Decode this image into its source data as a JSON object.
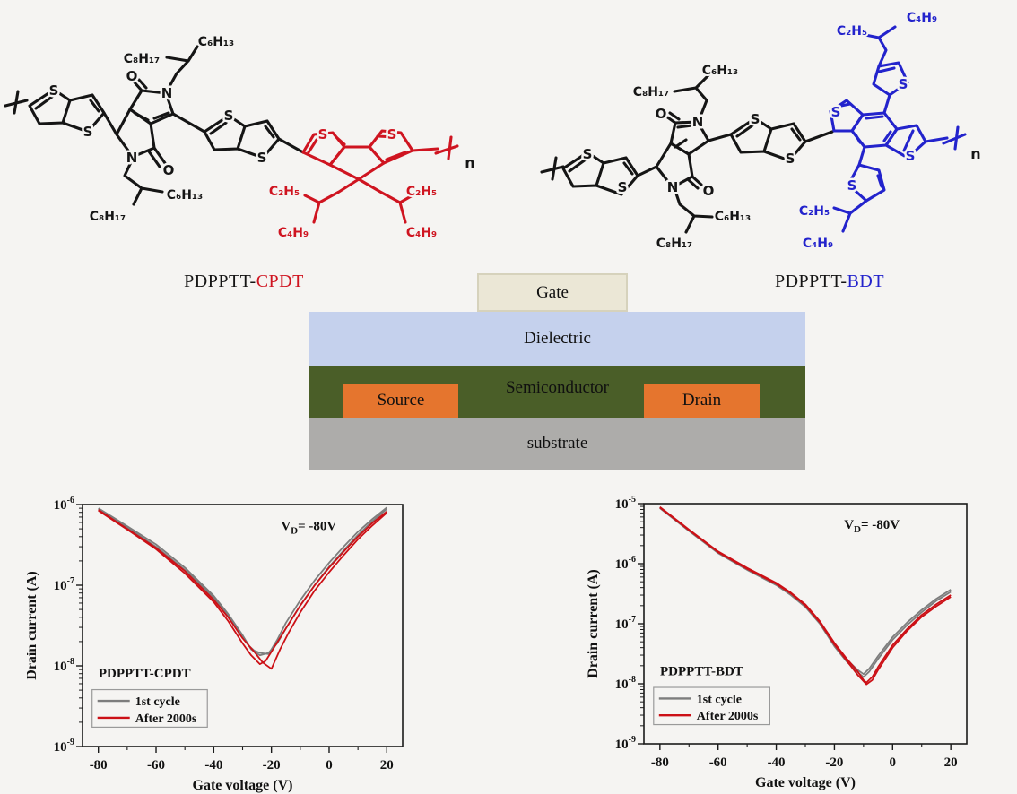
{
  "background": "#f5f4f2",
  "atoms": {
    "S": "S",
    "N": "N",
    "O": "O"
  },
  "formulas": {
    "c8h17": "C₈H₁₇",
    "c6h13": "C₆H₁₃",
    "c2h5": "C₂H₅",
    "c4h9": "C₄H₉"
  },
  "structures": {
    "left": {
      "caption_prefix": "PDPPTT-",
      "caption_suffix": "CPDT",
      "accent_color": "#cf1420",
      "repeat": "n"
    },
    "right": {
      "caption_prefix": "PDPPTT-",
      "caption_suffix": "BDT",
      "accent_color": "#2323cc",
      "repeat": "n"
    }
  },
  "device": {
    "gate": {
      "label": "Gate",
      "bg": "#ebe7d6",
      "border": "#d6d2bc"
    },
    "dielectric": {
      "label": "Dielectric",
      "bg": "#c5d1ed"
    },
    "semiconductor": {
      "label": "Semiconductor",
      "bg": "#4a5e28"
    },
    "source": {
      "label": "Source",
      "bg": "#e5752e"
    },
    "drain": {
      "label": "Drain",
      "bg": "#e5752e"
    },
    "substrate": {
      "label": "substrate",
      "bg": "#adacaa"
    }
  },
  "chart_data": [
    {
      "type": "line",
      "title": "PDPPTT-CPDT",
      "xlabel": "Gate voltage (V)",
      "ylabel": "Drain current (A)",
      "xlim": [
        -85.5,
        25.5
      ],
      "x_ticks": [
        -80,
        -60,
        -40,
        -20,
        0,
        20
      ],
      "ylog_exp_range": [
        -9,
        -6
      ],
      "y_tick_exps": [
        -6,
        -7,
        -8,
        -9
      ],
      "grid": false,
      "legend_position": "lower-left",
      "annotation": {
        "pre": "V",
        "sub": "D",
        "post": "= -80V"
      },
      "legend": [
        {
          "label": "1st cycle",
          "color": "#7d7d7d"
        },
        {
          "label": "After 2000s",
          "color": "#cc1016"
        }
      ],
      "series": [
        {
          "name": "1st cycle",
          "color": "#7d7d7d",
          "branches": [
            [
              [
                -80,
                8.8e-07
              ],
              [
                -70,
                5.2e-07
              ],
              [
                -60,
                3e-07
              ],
              [
                -50,
                1.55e-07
              ],
              [
                -45,
                1.05e-07
              ],
              [
                -40,
                7e-08
              ],
              [
                -35,
                4.2e-08
              ],
              [
                -30,
                2.3e-08
              ],
              [
                -28,
                1.8e-08
              ],
              [
                -26,
                1.55e-08
              ],
              [
                -24,
                1.45e-08
              ],
              [
                -21,
                1.4e-08
              ],
              [
                -18,
                2.1e-08
              ],
              [
                -15,
                3.4e-08
              ],
              [
                -10,
                6.5e-08
              ],
              [
                -5,
                1.15e-07
              ],
              [
                0,
                1.9e-07
              ],
              [
                5,
                3e-07
              ],
              [
                10,
                4.6e-07
              ],
              [
                15,
                6.6e-07
              ],
              [
                20,
                9.2e-07
              ]
            ],
            [
              [
                20,
                8.8e-07
              ],
              [
                15,
                6.2e-07
              ],
              [
                10,
                4.2e-07
              ],
              [
                5,
                2.7e-07
              ],
              [
                0,
                1.7e-07
              ],
              [
                -5,
                1e-07
              ],
              [
                -10,
                5.6e-08
              ],
              [
                -15,
                2.9e-08
              ],
              [
                -18,
                1.9e-08
              ],
              [
                -21,
                1.45e-08
              ],
              [
                -24,
                1.35e-08
              ],
              [
                -27,
                1.6e-08
              ],
              [
                -30,
                2.4e-08
              ],
              [
                -35,
                4.4e-08
              ],
              [
                -40,
                7.4e-08
              ],
              [
                -50,
                1.65e-07
              ],
              [
                -60,
                3.2e-07
              ],
              [
                -70,
                5.4e-07
              ],
              [
                -80,
                9e-07
              ]
            ]
          ]
        },
        {
          "name": "After 2000s",
          "color": "#cc1016",
          "branches": [
            [
              [
                -80,
                8.4e-07
              ],
              [
                -70,
                4.9e-07
              ],
              [
                -60,
                2.8e-07
              ],
              [
                -50,
                1.4e-07
              ],
              [
                -40,
                6.2e-08
              ],
              [
                -35,
                3.6e-08
              ],
              [
                -30,
                1.9e-08
              ],
              [
                -27,
                1.35e-08
              ],
              [
                -24,
                1.05e-08
              ],
              [
                -22,
                1.15e-08
              ],
              [
                -20,
                1.5e-08
              ],
              [
                -15,
                2.9e-08
              ],
              [
                -10,
                5.6e-08
              ],
              [
                -5,
                1e-07
              ],
              [
                0,
                1.65e-07
              ],
              [
                5,
                2.6e-07
              ],
              [
                10,
                4e-07
              ],
              [
                15,
                5.9e-07
              ],
              [
                20,
                8.2e-07
              ]
            ],
            [
              [
                20,
                7.9e-07
              ],
              [
                15,
                5.5e-07
              ],
              [
                10,
                3.7e-07
              ],
              [
                5,
                2.35e-07
              ],
              [
                0,
                1.45e-07
              ],
              [
                -5,
                8.6e-08
              ],
              [
                -10,
                4.6e-08
              ],
              [
                -14,
                2.6e-08
              ],
              [
                -17,
                1.6e-08
              ],
              [
                -20,
                9.2e-09
              ],
              [
                -23,
                1.1e-08
              ],
              [
                -26,
                1.5e-08
              ],
              [
                -30,
                2.2e-08
              ],
              [
                -35,
                4e-08
              ],
              [
                -40,
                6.6e-08
              ],
              [
                -50,
                1.5e-07
              ],
              [
                -60,
                2.9e-07
              ],
              [
                -70,
                5e-07
              ],
              [
                -80,
                8.6e-07
              ]
            ]
          ]
        }
      ]
    },
    {
      "type": "line",
      "title": "PDPPTT-BDT",
      "xlabel": "Gate voltage (V)",
      "ylabel": "Drain current (A)",
      "xlim": [
        -85.5,
        25.5
      ],
      "x_ticks": [
        -80,
        -60,
        -40,
        -20,
        0,
        20
      ],
      "ylog_exp_range": [
        -9,
        -5
      ],
      "y_tick_exps": [
        -5,
        -6,
        -7,
        -8,
        -9
      ],
      "grid": false,
      "legend_position": "lower-left",
      "annotation": {
        "pre": "V",
        "sub": "D",
        "post": "= -80V"
      },
      "legend": [
        {
          "label": "1st cycle",
          "color": "#7d7d7d"
        },
        {
          "label": "After 2000s",
          "color": "#cc1016"
        }
      ],
      "series": [
        {
          "name": "1st cycle",
          "color": "#7d7d7d",
          "branches": [
            [
              [
                -80,
                8.6e-06
              ],
              [
                -70,
                3.6e-06
              ],
              [
                -60,
                1.55e-06
              ],
              [
                -50,
                8.2e-07
              ],
              [
                -40,
                4.6e-07
              ],
              [
                -35,
                3.2e-07
              ],
              [
                -30,
                2e-07
              ],
              [
                -25,
                1.05e-07
              ],
              [
                -20,
                4.6e-08
              ],
              [
                -16,
                2.6e-08
              ],
              [
                -12,
                1.7e-08
              ],
              [
                -10,
                1.45e-08
              ],
              [
                -8,
                1.8e-08
              ],
              [
                -5,
                2.9e-08
              ],
              [
                0,
                6e-08
              ],
              [
                5,
                1.05e-07
              ],
              [
                10,
                1.7e-07
              ],
              [
                15,
                2.6e-07
              ],
              [
                20,
                3.7e-07
              ]
            ],
            [
              [
                20,
                3.4e-07
              ],
              [
                15,
                2.4e-07
              ],
              [
                10,
                1.55e-07
              ],
              [
                5,
                9.5e-08
              ],
              [
                0,
                5.4e-08
              ],
              [
                -5,
                2.6e-08
              ],
              [
                -8,
                1.6e-08
              ],
              [
                -10,
                1.3e-08
              ],
              [
                -12,
                1.55e-08
              ],
              [
                -16,
                2.4e-08
              ],
              [
                -20,
                4.2e-08
              ],
              [
                -25,
                1e-07
              ],
              [
                -30,
                1.9e-07
              ],
              [
                -35,
                3e-07
              ],
              [
                -40,
                4.4e-07
              ],
              [
                -50,
                7.9e-07
              ],
              [
                -60,
                1.5e-06
              ],
              [
                -70,
                3.5e-06
              ],
              [
                -80,
                8.4e-06
              ]
            ]
          ]
        },
        {
          "name": "After 2000s",
          "color": "#cc1016",
          "branches": [
            [
              [
                -80,
                8.8e-06
              ],
              [
                -70,
                3.7e-06
              ],
              [
                -60,
                1.6e-06
              ],
              [
                -50,
                8.5e-07
              ],
              [
                -40,
                4.8e-07
              ],
              [
                -35,
                3.3e-07
              ],
              [
                -30,
                2.1e-07
              ],
              [
                -25,
                1.1e-07
              ],
              [
                -20,
                4.8e-08
              ],
              [
                -16,
                2.7e-08
              ],
              [
                -12,
                1.6e-08
              ],
              [
                -10,
                1.15e-08
              ],
              [
                -9,
                1.05e-08
              ],
              [
                -7,
                1.3e-08
              ],
              [
                -5,
                1.9e-08
              ],
              [
                0,
                4.4e-08
              ],
              [
                5,
                8.2e-08
              ],
              [
                10,
                1.4e-07
              ],
              [
                15,
                2.1e-07
              ],
              [
                20,
                3e-07
              ]
            ],
            [
              [
                20,
                2.8e-07
              ],
              [
                15,
                1.95e-07
              ],
              [
                10,
                1.3e-07
              ],
              [
                5,
                7.6e-08
              ],
              [
                0,
                4e-08
              ],
              [
                -5,
                1.7e-08
              ],
              [
                -7,
                1.15e-08
              ],
              [
                -9,
                9.8e-09
              ],
              [
                -12,
                1.4e-08
              ],
              [
                -16,
                2.5e-08
              ],
              [
                -20,
                4.5e-08
              ],
              [
                -25,
                1.05e-07
              ],
              [
                -30,
                2e-07
              ],
              [
                -35,
                3.2e-07
              ],
              [
                -40,
                4.6e-07
              ],
              [
                -50,
                8.2e-07
              ],
              [
                -60,
                1.55e-06
              ],
              [
                -70,
                3.6e-06
              ],
              [
                -80,
                8.6e-06
              ]
            ]
          ]
        }
      ]
    }
  ]
}
